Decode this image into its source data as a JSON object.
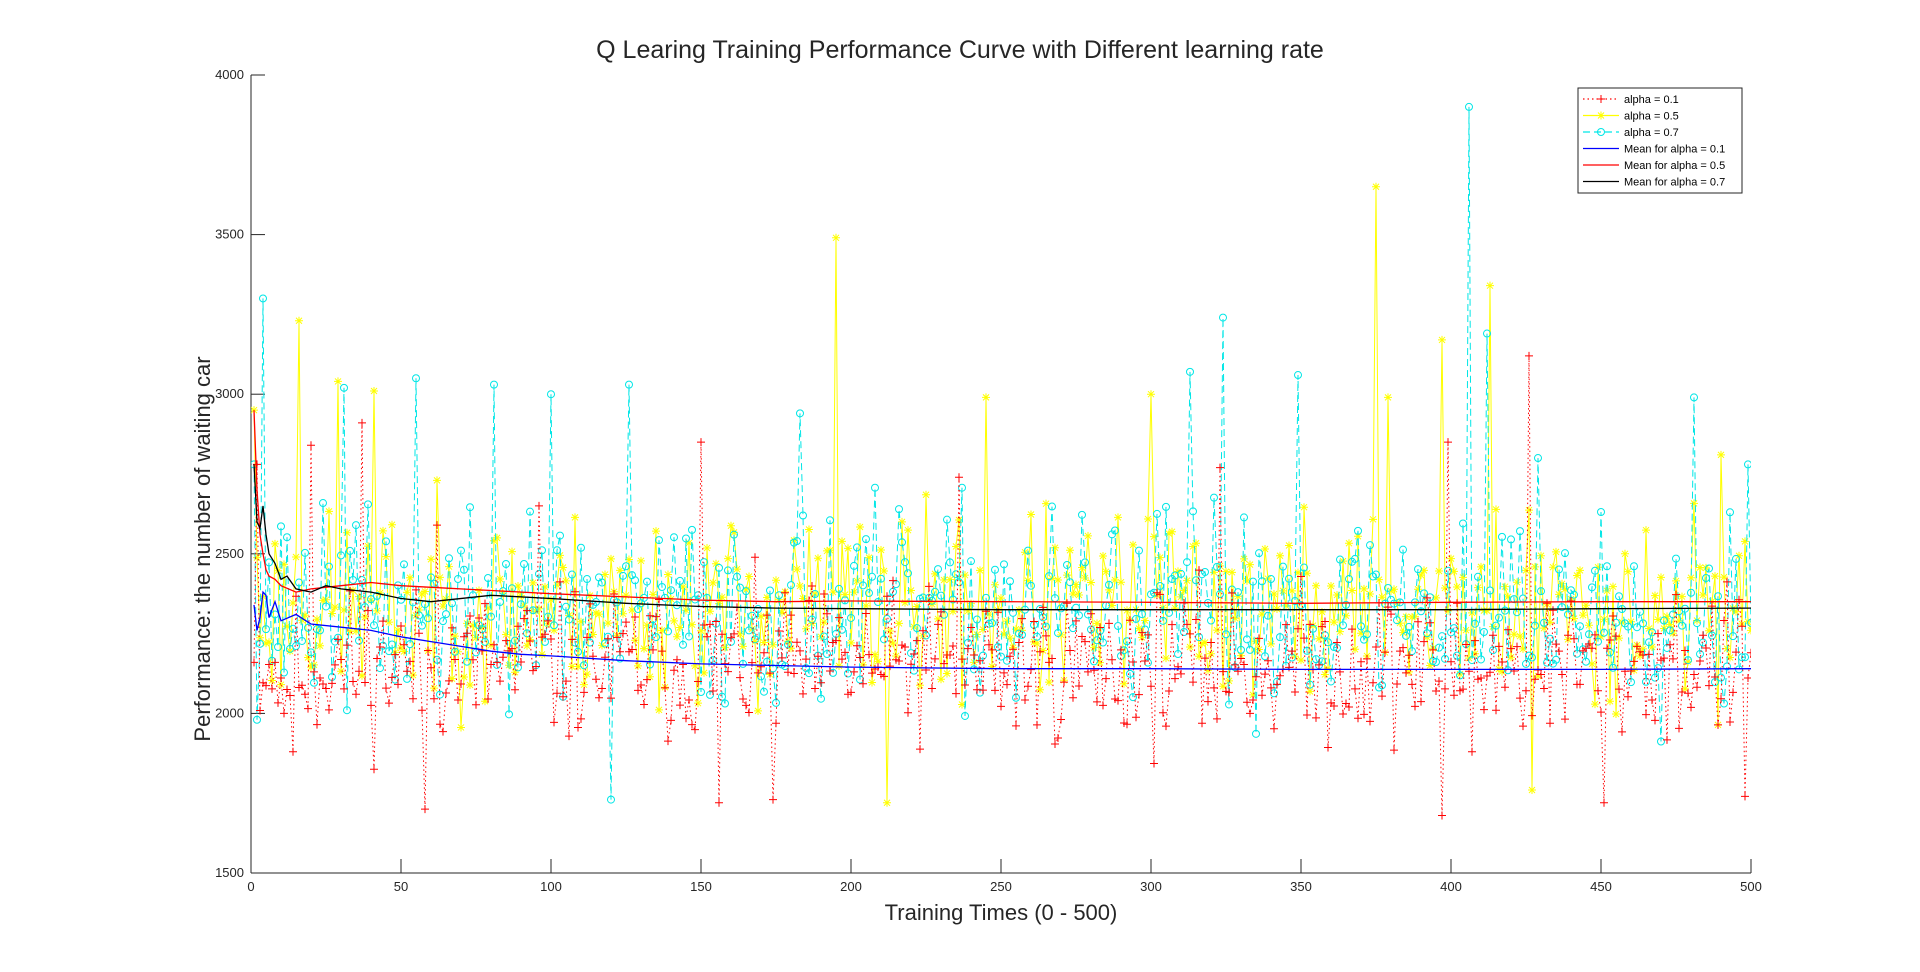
{
  "chart_data": {
    "type": "line",
    "title": "Q Learing Training Performance Curve with Different learning rate",
    "xlabel": "Training Times (0 - 500)",
    "ylabel": "Performance: the number of waiting car",
    "xlim": [
      0,
      500
    ],
    "ylim": [
      1500,
      4000
    ],
    "xticks": [
      "0",
      "50",
      "100",
      "150",
      "200",
      "250",
      "300",
      "350",
      "400",
      "450",
      "500"
    ],
    "yticks": [
      "1500",
      "2000",
      "2500",
      "3000",
      "3500",
      "4000"
    ],
    "grid": false,
    "legend_position": "top-right",
    "series": [
      {
        "name": "alpha = 0.1",
        "color": "#ff0000",
        "style": "dotted",
        "marker": "plus",
        "mean": 2150,
        "spread": 190,
        "seed": 11,
        "spikes": [
          [
            1,
            2160
          ],
          [
            2,
            2780
          ],
          [
            11,
            2000
          ],
          [
            14,
            1880
          ],
          [
            20,
            2840
          ],
          [
            37,
            2910
          ],
          [
            58,
            1700
          ],
          [
            62,
            2590
          ],
          [
            96,
            2650
          ],
          [
            150,
            2850
          ],
          [
            156,
            1720
          ],
          [
            174,
            1730
          ],
          [
            236,
            2740
          ],
          [
            323,
            2770
          ],
          [
            397,
            1680
          ],
          [
            399,
            2850
          ],
          [
            407,
            1880
          ],
          [
            426,
            3120
          ],
          [
            451,
            1720
          ],
          [
            498,
            1740
          ],
          [
            500,
            2190
          ]
        ]
      },
      {
        "name": "alpha = 0.5",
        "color": "#ffff00",
        "style": "solid",
        "marker": "star",
        "mean": 2330,
        "spread": 230,
        "seed": 23,
        "spikes": [
          [
            1,
            2950
          ],
          [
            16,
            3230
          ],
          [
            29,
            3040
          ],
          [
            41,
            3010
          ],
          [
            195,
            3490
          ],
          [
            212,
            1720
          ],
          [
            245,
            2990
          ],
          [
            300,
            3000
          ],
          [
            375,
            3650
          ],
          [
            379,
            2990
          ],
          [
            397,
            3170
          ],
          [
            413,
            3340
          ],
          [
            427,
            1760
          ],
          [
            490,
            2810
          ],
          [
            500,
            2260
          ]
        ]
      },
      {
        "name": "alpha = 0.7",
        "color": "#00e6e6",
        "style": "dashed",
        "marker": "circle",
        "mean": 2320,
        "spread": 240,
        "seed": 37,
        "spikes": [
          [
            1,
            2780
          ],
          [
            4,
            3300
          ],
          [
            31,
            3020
          ],
          [
            55,
            3050
          ],
          [
            81,
            3030
          ],
          [
            100,
            3000
          ],
          [
            120,
            1730
          ],
          [
            126,
            3030
          ],
          [
            183,
            2940
          ],
          [
            324,
            3240
          ],
          [
            313,
            3070
          ],
          [
            349,
            3060
          ],
          [
            406,
            3900
          ],
          [
            412,
            3190
          ],
          [
            429,
            2800
          ],
          [
            481,
            2990
          ],
          [
            499,
            2780
          ]
        ]
      },
      {
        "name": "Mean for alpha = 0.1",
        "color": "#0000ff",
        "style": "solid",
        "marker": "none",
        "x": [
          1,
          2,
          3,
          4,
          5,
          6,
          8,
          10,
          15,
          20,
          30,
          40,
          50,
          60,
          70,
          80,
          90,
          100,
          125,
          150,
          175,
          200,
          250,
          300,
          350,
          400,
          450,
          500
        ],
        "values": [
          2340,
          2260,
          2300,
          2380,
          2370,
          2300,
          2350,
          2290,
          2310,
          2280,
          2270,
          2260,
          2240,
          2225,
          2210,
          2195,
          2185,
          2180,
          2165,
          2155,
          2150,
          2145,
          2140,
          2140,
          2138,
          2138,
          2138,
          2140
        ]
      },
      {
        "name": "Mean for alpha = 0.5",
        "color": "#ff0000",
        "style": "solid",
        "marker": "none",
        "x": [
          1,
          2,
          3,
          4,
          5,
          6,
          8,
          10,
          15,
          20,
          30,
          40,
          50,
          60,
          80,
          100,
          125,
          150,
          175,
          200,
          250,
          300,
          350,
          400,
          450,
          500
        ],
        "values": [
          2950,
          2700,
          2560,
          2500,
          2450,
          2430,
          2420,
          2400,
          2380,
          2390,
          2400,
          2410,
          2400,
          2395,
          2385,
          2375,
          2365,
          2355,
          2350,
          2352,
          2350,
          2348,
          2345,
          2348,
          2350,
          2350
        ]
      },
      {
        "name": "Mean for alpha = 0.7",
        "color": "#000000",
        "style": "solid",
        "marker": "none",
        "x": [
          1,
          2,
          3,
          4,
          5,
          6,
          8,
          10,
          12,
          15,
          20,
          25,
          30,
          40,
          50,
          60,
          80,
          100,
          125,
          150,
          175,
          200,
          250,
          300,
          350,
          400,
          450,
          500
        ],
        "values": [
          2780,
          2600,
          2580,
          2650,
          2560,
          2500,
          2470,
          2420,
          2430,
          2390,
          2380,
          2400,
          2390,
          2380,
          2360,
          2350,
          2370,
          2360,
          2345,
          2335,
          2330,
          2328,
          2325,
          2325,
          2325,
          2325,
          2328,
          2330
        ]
      }
    ]
  }
}
